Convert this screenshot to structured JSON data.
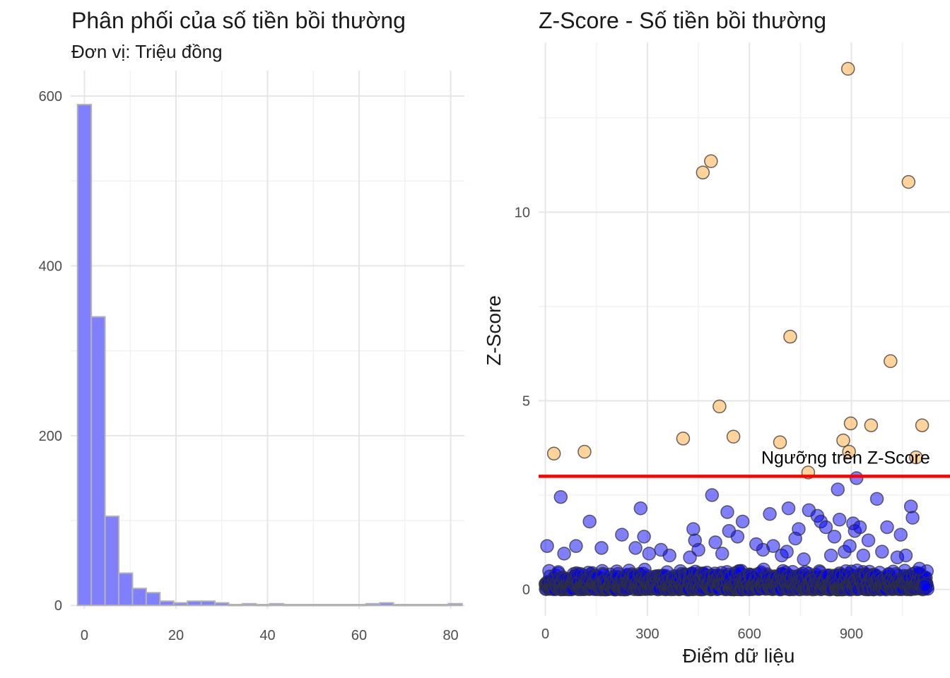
{
  "chart_data": [
    {
      "type": "bar",
      "subtype": "histogram",
      "title": "Phân phối của số tiền bồi thường",
      "subtitle": "Đơn vị: Triệu đồng",
      "xlabel": "",
      "ylabel": "",
      "xlim": [
        -3,
        83
      ],
      "ylim": [
        -4,
        630
      ],
      "x_ticks": [
        0,
        20,
        40,
        60,
        80
      ],
      "y_ticks": [
        0,
        200,
        400,
        600
      ],
      "grid": true,
      "bin_width": 3,
      "bar_fill": "#8080ff",
      "bar_edge": "#b3b3b3",
      "bins": [
        {
          "x": 0,
          "count": 590
        },
        {
          "x": 3,
          "count": 340
        },
        {
          "x": 6,
          "count": 105
        },
        {
          "x": 9,
          "count": 38
        },
        {
          "x": 12,
          "count": 20
        },
        {
          "x": 15,
          "count": 15
        },
        {
          "x": 18,
          "count": 5
        },
        {
          "x": 21,
          "count": 3
        },
        {
          "x": 24,
          "count": 5
        },
        {
          "x": 27,
          "count": 5
        },
        {
          "x": 30,
          "count": 3
        },
        {
          "x": 33,
          "count": 1
        },
        {
          "x": 36,
          "count": 2
        },
        {
          "x": 39,
          "count": 1
        },
        {
          "x": 42,
          "count": 2
        },
        {
          "x": 45,
          "count": 1
        },
        {
          "x": 48,
          "count": 1
        },
        {
          "x": 51,
          "count": 1
        },
        {
          "x": 54,
          "count": 1
        },
        {
          "x": 57,
          "count": 1
        },
        {
          "x": 60,
          "count": 1
        },
        {
          "x": 63,
          "count": 2
        },
        {
          "x": 66,
          "count": 3
        },
        {
          "x": 69,
          "count": 1
        },
        {
          "x": 72,
          "count": 1
        },
        {
          "x": 75,
          "count": 1
        },
        {
          "x": 78,
          "count": 1
        },
        {
          "x": 81,
          "count": 2
        }
      ]
    },
    {
      "type": "scatter",
      "title": "Z-Score - Số tiền bồi thường",
      "xlabel": "Điểm dữ liệu",
      "ylabel": "Z-Score",
      "xlim": [
        -20,
        1190
      ],
      "ylim": [
        -0.7,
        14.5
      ],
      "x_ticks": [
        0,
        300,
        600,
        900
      ],
      "y_ticks": [
        0,
        5,
        10
      ],
      "grid": true,
      "threshold": {
        "value": 3,
        "label": "Ngưỡng trên Z-Score",
        "color": "#ff0000"
      },
      "outlier_color": "#ffa833",
      "normal_color": "#0000ff",
      "point_count": 1125,
      "outliers": [
        {
          "x": 25,
          "y": 3.6
        },
        {
          "x": 115,
          "y": 3.65
        },
        {
          "x": 405,
          "y": 4.0
        },
        {
          "x": 463,
          "y": 11.05
        },
        {
          "x": 487,
          "y": 11.35
        },
        {
          "x": 512,
          "y": 4.85
        },
        {
          "x": 553,
          "y": 4.05
        },
        {
          "x": 690,
          "y": 3.9
        },
        {
          "x": 720,
          "y": 6.7
        },
        {
          "x": 773,
          "y": 3.1
        },
        {
          "x": 876,
          "y": 3.95
        },
        {
          "x": 890,
          "y": 13.8
        },
        {
          "x": 893,
          "y": 3.65
        },
        {
          "x": 898,
          "y": 4.4
        },
        {
          "x": 958,
          "y": 4.35
        },
        {
          "x": 1015,
          "y": 6.05
        },
        {
          "x": 1068,
          "y": 10.8
        },
        {
          "x": 1090,
          "y": 3.5
        },
        {
          "x": 1108,
          "y": 4.35
        }
      ],
      "mid_points": [
        {
          "x": 5,
          "y": 1.15
        },
        {
          "x": 45,
          "y": 2.45
        },
        {
          "x": 55,
          "y": 0.95
        },
        {
          "x": 90,
          "y": 1.15
        },
        {
          "x": 130,
          "y": 1.8
        },
        {
          "x": 165,
          "y": 1.1
        },
        {
          "x": 225,
          "y": 1.45
        },
        {
          "x": 265,
          "y": 1.1
        },
        {
          "x": 280,
          "y": 2.15
        },
        {
          "x": 290,
          "y": 1.4
        },
        {
          "x": 305,
          "y": 0.95
        },
        {
          "x": 340,
          "y": 1.05
        },
        {
          "x": 365,
          "y": 0.9
        },
        {
          "x": 425,
          "y": 0.85
        },
        {
          "x": 435,
          "y": 1.6
        },
        {
          "x": 440,
          "y": 1.3
        },
        {
          "x": 450,
          "y": 1.05
        },
        {
          "x": 490,
          "y": 2.5
        },
        {
          "x": 500,
          "y": 1.25
        },
        {
          "x": 520,
          "y": 0.95
        },
        {
          "x": 535,
          "y": 2.05
        },
        {
          "x": 540,
          "y": 1.55
        },
        {
          "x": 565,
          "y": 1.4
        },
        {
          "x": 580,
          "y": 1.8
        },
        {
          "x": 620,
          "y": 1.2
        },
        {
          "x": 640,
          "y": 1.05
        },
        {
          "x": 660,
          "y": 2.0
        },
        {
          "x": 670,
          "y": 1.15
        },
        {
          "x": 695,
          "y": 0.9
        },
        {
          "x": 710,
          "y": 1.0
        },
        {
          "x": 715,
          "y": 2.15
        },
        {
          "x": 735,
          "y": 1.35
        },
        {
          "x": 745,
          "y": 1.6
        },
        {
          "x": 760,
          "y": 0.8
        },
        {
          "x": 775,
          "y": 2.1
        },
        {
          "x": 800,
          "y": 1.95
        },
        {
          "x": 810,
          "y": 1.8
        },
        {
          "x": 825,
          "y": 1.65
        },
        {
          "x": 840,
          "y": 0.9
        },
        {
          "x": 850,
          "y": 1.4
        },
        {
          "x": 860,
          "y": 2.65
        },
        {
          "x": 865,
          "y": 1.85
        },
        {
          "x": 880,
          "y": 1.0
        },
        {
          "x": 895,
          "y": 1.15
        },
        {
          "x": 905,
          "y": 1.75
        },
        {
          "x": 910,
          "y": 1.55
        },
        {
          "x": 915,
          "y": 2.95
        },
        {
          "x": 925,
          "y": 1.65
        },
        {
          "x": 935,
          "y": 0.9
        },
        {
          "x": 950,
          "y": 1.3
        },
        {
          "x": 975,
          "y": 2.4
        },
        {
          "x": 990,
          "y": 1.0
        },
        {
          "x": 1005,
          "y": 1.65
        },
        {
          "x": 1035,
          "y": 0.85
        },
        {
          "x": 1045,
          "y": 1.45
        },
        {
          "x": 1060,
          "y": 0.9
        },
        {
          "x": 1075,
          "y": 2.2
        },
        {
          "x": 1080,
          "y": 1.9
        },
        {
          "x": 1100,
          "y": 0.55
        },
        {
          "x": 1115,
          "y": 0.1
        }
      ],
      "bulk_band": {
        "y_min": 0.0,
        "y_max": 0.55
      }
    }
  ]
}
